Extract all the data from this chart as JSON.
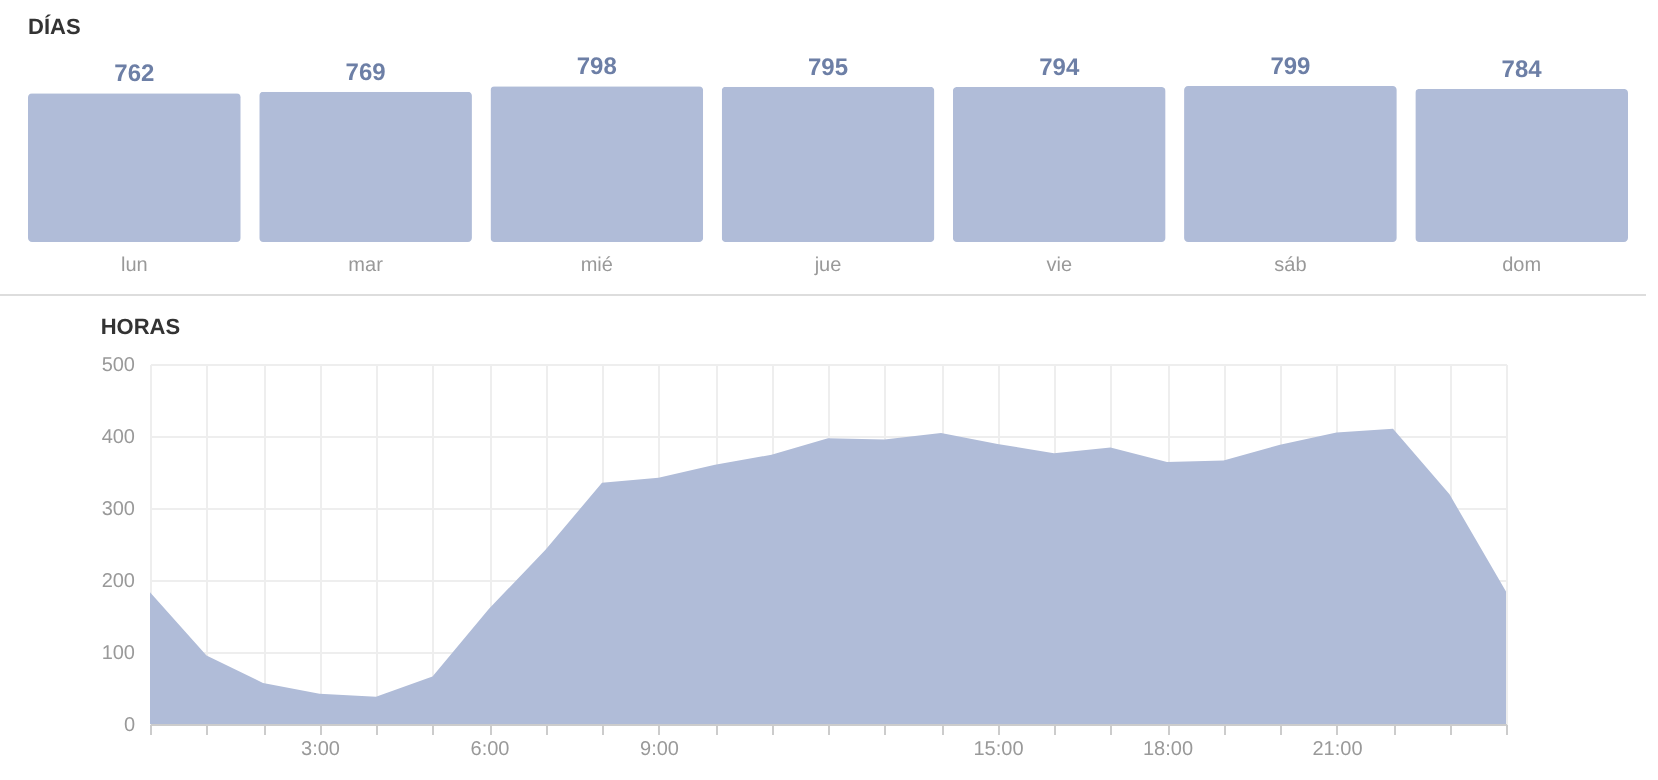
{
  "chart_data": [
    {
      "type": "bar",
      "title": "DÍAS",
      "categories": [
        "lun",
        "mar",
        "mié",
        "jue",
        "vie",
        "sáb",
        "dom"
      ],
      "values": [
        762,
        769,
        798,
        795,
        794,
        799,
        784
      ],
      "color": "#b0bcd8",
      "data_labels": true,
      "tick_labels": "x"
    },
    {
      "type": "area",
      "title": "HORAS",
      "x": [
        0,
        1,
        2,
        3,
        4,
        5,
        6,
        7,
        8,
        9,
        10,
        11,
        12,
        13,
        14,
        15,
        16,
        17,
        18,
        19,
        20,
        21,
        22,
        23,
        24
      ],
      "values": [
        183,
        95,
        57,
        42,
        38,
        66,
        160,
        242,
        335,
        342,
        360,
        374,
        397,
        395,
        404,
        389,
        376,
        384,
        364,
        366,
        388,
        405,
        410,
        319,
        184
      ],
      "color": "#b0bcd8",
      "xlim": [
        0,
        24
      ],
      "ylim": [
        0,
        500
      ],
      "yticks": [
        0,
        100,
        200,
        300,
        400,
        500
      ],
      "xticks": [
        {
          "value": 0,
          "label": null
        },
        {
          "value": 1,
          "label": null
        },
        {
          "value": 2,
          "label": null
        },
        {
          "value": 3,
          "label": "3:00"
        },
        {
          "value": 4,
          "label": null
        },
        {
          "value": 5,
          "label": null
        },
        {
          "value": 6,
          "label": "6:00"
        },
        {
          "value": 7,
          "label": null
        },
        {
          "value": 8,
          "label": null
        },
        {
          "value": 9,
          "label": "9:00"
        },
        {
          "value": 10,
          "label": null
        },
        {
          "value": 11,
          "label": null
        },
        {
          "value": 12,
          "label": null
        },
        {
          "value": 13,
          "label": null
        },
        {
          "value": 14,
          "label": null
        },
        {
          "value": 15,
          "label": "15:00"
        },
        {
          "value": 16,
          "label": null
        },
        {
          "value": 17,
          "label": null
        },
        {
          "value": 18,
          "label": "18:00"
        },
        {
          "value": 19,
          "label": null
        },
        {
          "value": 20,
          "label": null
        },
        {
          "value": 21,
          "label": "21:00"
        },
        {
          "value": 22,
          "label": null
        },
        {
          "value": 23,
          "label": null
        },
        {
          "value": 24,
          "label": null
        }
      ],
      "grid": true
    }
  ]
}
